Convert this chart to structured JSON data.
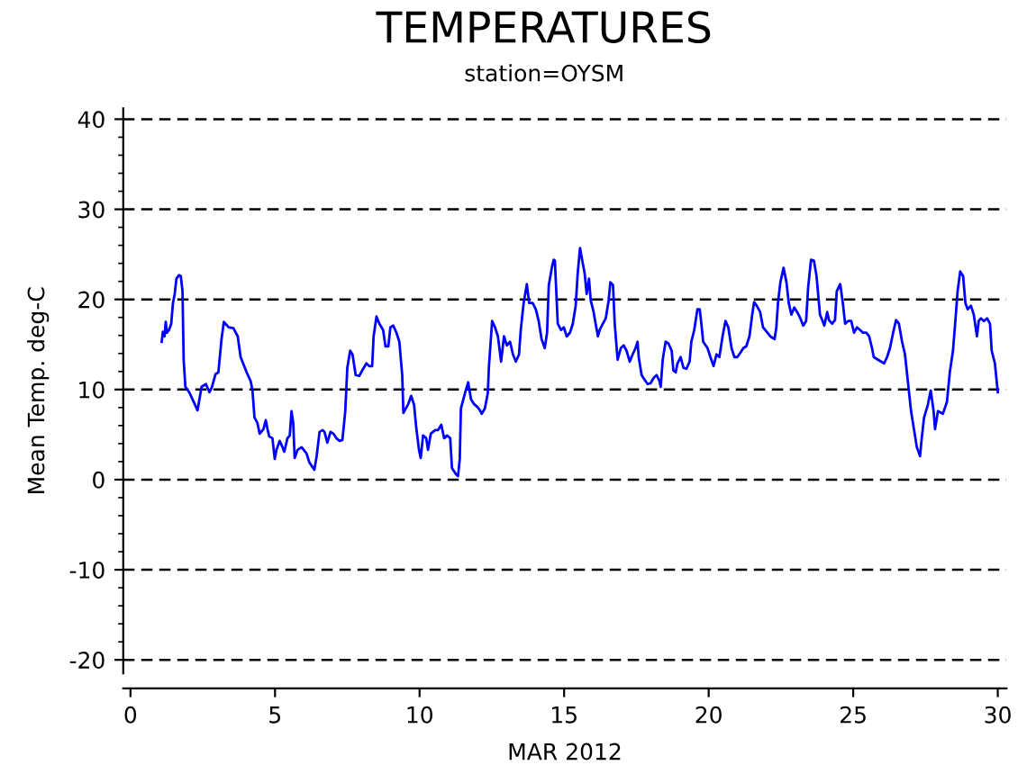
{
  "chart_data": {
    "type": "line",
    "title": "TEMPERATURES",
    "subtitle": "station=OYSM",
    "xlabel": "MAR 2012",
    "ylabel": "Mean Temp. deg-C",
    "xlim": [
      -0.25,
      30.3
    ],
    "xticks": [
      0,
      5,
      10,
      15,
      20,
      25,
      30
    ],
    "ylim": [
      -21.5,
      41.2
    ],
    "yticks": [
      -20,
      -10,
      0,
      10,
      20,
      30,
      40
    ],
    "grid": "y",
    "line_style": "solid",
    "marker": "none",
    "series": [
      {
        "color": "#0000ff",
        "x": [
          1.08,
          1.12,
          1.18,
          1.22,
          1.26,
          1.33,
          1.41,
          1.47,
          1.53,
          1.59,
          1.68,
          1.74,
          1.8,
          1.84,
          1.9,
          2.05,
          2.32,
          2.46,
          2.61,
          2.73,
          2.82,
          2.94,
          3.04,
          3.15,
          3.23,
          3.4,
          3.56,
          3.71,
          3.81,
          4.02,
          4.16,
          4.22,
          4.29,
          4.39,
          4.47,
          4.6,
          4.68,
          4.74,
          4.8,
          4.91,
          4.99,
          5.05,
          5.16,
          5.26,
          5.32,
          5.43,
          5.51,
          5.57,
          5.63,
          5.68,
          5.78,
          5.92,
          6.09,
          6.19,
          6.36,
          6.44,
          6.54,
          6.65,
          6.71,
          6.81,
          6.92,
          7.02,
          7.12,
          7.23,
          7.33,
          7.43,
          7.5,
          7.6,
          7.68,
          7.79,
          7.91,
          8.05,
          8.16,
          8.26,
          8.36,
          8.41,
          8.51,
          8.61,
          8.74,
          8.82,
          8.92,
          8.99,
          9.09,
          9.2,
          9.3,
          9.4,
          9.44,
          9.61,
          9.71,
          9.81,
          9.88,
          9.98,
          10.04,
          10.12,
          10.23,
          10.29,
          10.39,
          10.54,
          10.64,
          10.75,
          10.85,
          10.95,
          11.06,
          11.12,
          11.26,
          11.33,
          11.39,
          11.43,
          11.57,
          11.68,
          11.78,
          11.88,
          11.99,
          12.09,
          12.15,
          12.26,
          12.36,
          12.4,
          12.51,
          12.61,
          12.71,
          12.82,
          12.92,
          13.02,
          13.13,
          13.23,
          13.33,
          13.44,
          13.5,
          13.6,
          13.71,
          13.79,
          13.91,
          14.02,
          14.12,
          14.22,
          14.33,
          14.41,
          14.47,
          14.58,
          14.64,
          14.68,
          14.78,
          14.89,
          14.99,
          15.09,
          15.2,
          15.3,
          15.4,
          15.47,
          15.55,
          15.61,
          15.71,
          15.78,
          15.86,
          15.92,
          16.02,
          16.09,
          16.17,
          16.23,
          16.34,
          16.44,
          16.54,
          16.6,
          16.69,
          16.75,
          16.85,
          16.96,
          17.06,
          17.16,
          17.27,
          17.37,
          17.47,
          17.54,
          17.58,
          17.68,
          17.78,
          17.89,
          17.99,
          18.1,
          18.2,
          18.3,
          18.34,
          18.41,
          18.51,
          18.61,
          18.72,
          18.78,
          18.86,
          18.92,
          19.03,
          19.13,
          19.23,
          19.34,
          19.4,
          19.5,
          19.61,
          19.69,
          19.75,
          19.81,
          19.96,
          20.06,
          20.17,
          20.27,
          20.37,
          20.48,
          20.58,
          20.68,
          20.79,
          20.89,
          20.99,
          21.1,
          21.2,
          21.3,
          21.41,
          21.51,
          21.57,
          21.66,
          21.78,
          21.88,
          22.03,
          22.13,
          22.28,
          22.34,
          22.4,
          22.48,
          22.59,
          22.69,
          22.77,
          22.86,
          22.96,
          23.06,
          23.17,
          23.27,
          23.37,
          23.44,
          23.54,
          23.64,
          23.73,
          23.85,
          23.93,
          24.0,
          24.1,
          24.16,
          24.27,
          24.37,
          24.43,
          24.55,
          24.64,
          24.72,
          24.82,
          24.93,
          25.03,
          25.13,
          25.24,
          25.34,
          25.45,
          25.55,
          25.65,
          25.71,
          25.86,
          26.07,
          26.17,
          26.27,
          26.38,
          26.48,
          26.58,
          26.69,
          26.79,
          26.89,
          27.0,
          27.1,
          27.2,
          27.31,
          27.37,
          27.45,
          27.58,
          27.68,
          27.78,
          27.83,
          27.93,
          28.1,
          28.24,
          28.34,
          28.45,
          28.55,
          28.61,
          28.7,
          28.8,
          28.88,
          28.96,
          29.07,
          29.17,
          29.28,
          29.34,
          29.42,
          29.52,
          29.63,
          29.73,
          29.79,
          29.9,
          30.0
        ],
        "values": [
          15.3,
          16.4,
          15.9,
          17.5,
          16.3,
          16.6,
          17.3,
          19.6,
          20.6,
          22.3,
          22.7,
          22.6,
          20.9,
          13.3,
          10.3,
          9.6,
          7.7,
          10.3,
          10.6,
          9.7,
          10.3,
          11.7,
          11.9,
          15.6,
          17.5,
          16.9,
          16.8,
          15.9,
          13.6,
          11.9,
          10.9,
          9.9,
          6.9,
          6.3,
          5.1,
          5.6,
          6.6,
          5.6,
          4.8,
          4.6,
          2.3,
          3.3,
          4.3,
          3.6,
          3.1,
          4.6,
          4.9,
          7.6,
          6.3,
          2.4,
          3.3,
          3.6,
          2.9,
          1.9,
          1.1,
          2.6,
          5.3,
          5.5,
          5.3,
          4.1,
          5.3,
          5.1,
          4.6,
          4.3,
          4.4,
          7.6,
          12.4,
          14.3,
          13.9,
          11.6,
          11.5,
          12.3,
          12.9,
          12.6,
          12.6,
          15.9,
          18.1,
          17.3,
          16.6,
          14.8,
          14.8,
          16.9,
          17.1,
          16.3,
          15.3,
          11.6,
          7.4,
          8.4,
          9.3,
          8.3,
          5.9,
          3.3,
          2.4,
          4.9,
          4.6,
          3.3,
          5.1,
          5.5,
          5.5,
          6.1,
          4.6,
          4.9,
          4.6,
          1.3,
          0.6,
          0.4,
          2.3,
          7.9,
          9.6,
          10.8,
          8.9,
          8.4,
          8.1,
          7.7,
          7.3,
          7.9,
          9.6,
          12.6,
          17.6,
          16.9,
          15.9,
          13.1,
          15.9,
          14.9,
          15.3,
          13.9,
          13.1,
          13.9,
          16.6,
          19.6,
          21.7,
          19.6,
          19.6,
          18.9,
          17.6,
          15.6,
          14.6,
          16.3,
          21.6,
          23.6,
          24.4,
          24.3,
          17.3,
          16.6,
          16.9,
          15.9,
          16.3,
          17.3,
          19.3,
          22.9,
          25.7,
          24.6,
          22.9,
          20.6,
          22.3,
          19.9,
          18.6,
          17.3,
          15.9,
          16.6,
          17.3,
          17.9,
          19.9,
          21.9,
          21.6,
          17.3,
          13.3,
          14.6,
          14.9,
          14.3,
          13.1,
          13.9,
          14.6,
          15.3,
          13.6,
          11.6,
          11.1,
          10.6,
          10.7,
          11.3,
          11.6,
          10.9,
          10.3,
          13.3,
          15.3,
          15.1,
          14.3,
          12.1,
          11.9,
          12.9,
          13.6,
          12.4,
          12.3,
          13.1,
          15.3,
          16.6,
          18.9,
          18.9,
          17.2,
          15.3,
          14.6,
          13.6,
          12.6,
          13.9,
          13.6,
          15.9,
          17.6,
          16.9,
          14.6,
          13.6,
          13.6,
          14.1,
          14.6,
          14.8,
          15.9,
          18.4,
          19.7,
          19.3,
          18.6,
          16.9,
          16.3,
          15.9,
          15.6,
          16.9,
          19.7,
          21.9,
          23.5,
          21.9,
          19.6,
          18.3,
          19.1,
          18.6,
          17.9,
          17.1,
          17.6,
          21.3,
          24.4,
          24.3,
          22.6,
          18.3,
          17.7,
          17.1,
          18.6,
          17.7,
          17.3,
          17.7,
          20.9,
          21.7,
          19.6,
          17.3,
          17.6,
          17.6,
          16.3,
          16.9,
          16.6,
          16.3,
          16.3,
          15.9,
          14.6,
          13.6,
          13.3,
          12.9,
          13.6,
          14.6,
          16.3,
          17.7,
          17.3,
          15.3,
          13.9,
          10.9,
          7.6,
          5.6,
          3.6,
          2.6,
          4.6,
          6.9,
          8.3,
          9.9,
          7.6,
          5.6,
          7.6,
          7.3,
          8.6,
          11.9,
          14.3,
          18.3,
          20.9,
          23.1,
          22.6,
          19.6,
          18.9,
          19.3,
          18.3,
          15.9,
          17.6,
          17.9,
          17.6,
          17.9,
          17.3,
          14.3,
          12.9,
          9.7
        ]
      }
    ]
  }
}
